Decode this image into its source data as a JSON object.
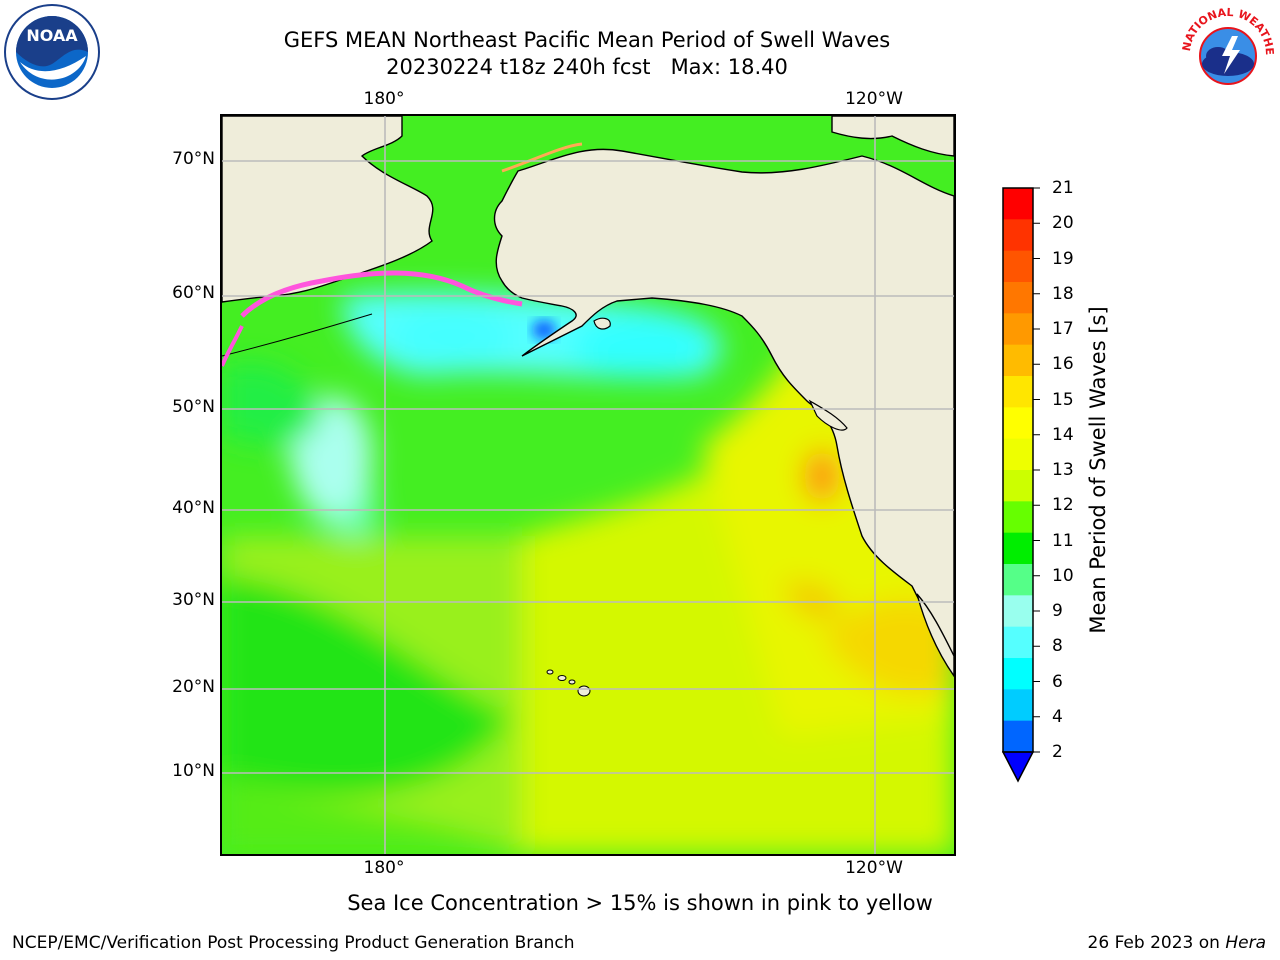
{
  "title_line1": "GEFS MEAN Northeast Pacific Mean Period of Swell Waves",
  "title_line2": "20230224 t18z 240h fcst   Max: 18.40",
  "lat_labels": [
    "70°N",
    "60°N",
    "50°N",
    "40°N",
    "30°N",
    "20°N",
    "10°N"
  ],
  "lon_labels_top": [
    "180°",
    "120°W"
  ],
  "lon_labels_bottom": [
    "180°",
    "120°W"
  ],
  "colorbar": {
    "label": "Mean Period of Swell Waves [s]",
    "ticks": [
      "21",
      "20",
      "19",
      "18",
      "17",
      "16",
      "15",
      "14",
      "13",
      "12",
      "11",
      "10",
      "9",
      "8",
      "6",
      "4",
      "2"
    ],
    "colors": [
      "#ff0000",
      "#ff3300",
      "#ff5500",
      "#ff7700",
      "#ff9900",
      "#ffbb00",
      "#ffe600",
      "#ffff00",
      "#eeff00",
      "#ccff00",
      "#66ff00",
      "#00ee00",
      "#55ff88",
      "#99ffee",
      "#55ffff",
      "#00ffff",
      "#00ccff",
      "#0066ff"
    ],
    "extend_color": "#0000ff"
  },
  "ice_note": "Sea Ice Concentration > 15% is shown in pink to yellow",
  "footer_left": "NCEP/EMC/Verification Post Processing Product Generation Branch",
  "footer_right_prefix": "26 Feb 2023 on ",
  "footer_right_host": "Hera",
  "logos": {
    "left": "NOAA",
    "right": "NATIONAL WEATHER SERVICE"
  },
  "colors": {
    "land": "#efedda",
    "ice_pink": "#ff55dd",
    "grid": "#bbbbbb"
  }
}
